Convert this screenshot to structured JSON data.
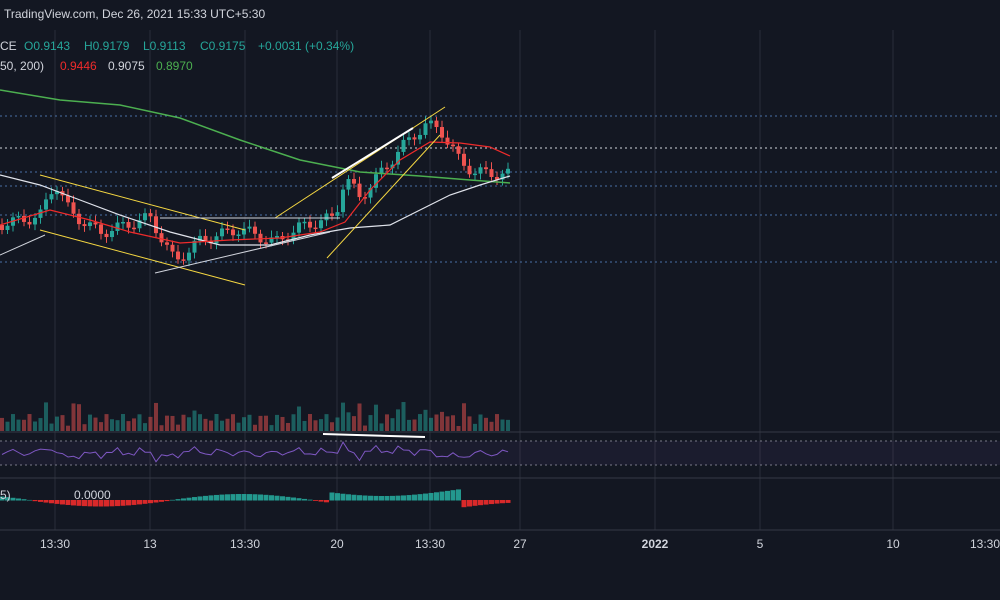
{
  "header": {
    "source": "TradingView.com, Dec 26, 2021 15:33 UTC+5:30",
    "symbol": "CE",
    "open": "O0.9143",
    "high": "H0.9179",
    "low": "L0.9113",
    "close": "C0.9175",
    "change": "+0.0031 (+0.34%)",
    "ma_label": "50, 200)",
    "ma_values": [
      "0.9446",
      "0.9075",
      "0.8970"
    ]
  },
  "macd": {
    "label": "5)",
    "value": "0.0000"
  },
  "time_axis": [
    "13:30",
    "13",
    "13:30",
    "20",
    "13:30",
    "27",
    "2022",
    "5",
    "10",
    "13:30"
  ]
}
